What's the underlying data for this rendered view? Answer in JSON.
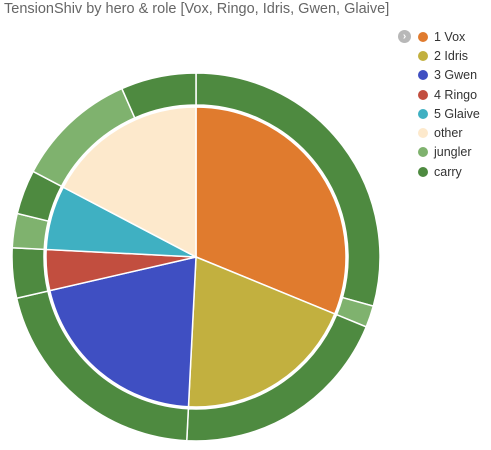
{
  "chart_data": {
    "type": "pie",
    "title": "TensionShiv by hero & role [Vox, Ringo, Idris, Gwen, Glaive]",
    "inner": [
      {
        "label": "1 Vox",
        "value": 31.2,
        "color": "#e07b2e"
      },
      {
        "label": "2 Idris",
        "value": 19.6,
        "color": "#c2b03f"
      },
      {
        "label": "3 Gwen",
        "value": 20.6,
        "color": "#3f4fc2"
      },
      {
        "label": "4 Ringo",
        "value": 4.4,
        "color": "#c24e3f"
      },
      {
        "label": "5 Glaive",
        "value": 6.9,
        "color": "#3fb0c2"
      },
      {
        "label": "other",
        "value": 17.3,
        "color": "#fde9cc"
      }
    ],
    "outer": [
      {
        "parent": "1 Vox",
        "role": "carry",
        "value": 29.3
      },
      {
        "parent": "1 Vox",
        "role": "jungler",
        "value": 1.9
      },
      {
        "parent": "2 Idris",
        "role": "carry",
        "value": 19.6
      },
      {
        "parent": "3 Gwen",
        "role": "carry",
        "value": 20.6
      },
      {
        "parent": "4 Ringo",
        "role": "carry",
        "value": 4.4
      },
      {
        "parent": "5 Glaive",
        "role": "jungler",
        "value": 3.0
      },
      {
        "parent": "5 Glaive",
        "role": "carry",
        "value": 3.9
      },
      {
        "parent": "other",
        "role": "jungler",
        "value": 10.7
      },
      {
        "parent": "other",
        "role": "carry",
        "value": 6.6
      }
    ],
    "legend": [
      {
        "label": "1 Vox",
        "color": "#e07b2e"
      },
      {
        "label": "2 Idris",
        "color": "#c2b03f"
      },
      {
        "label": "3 Gwen",
        "color": "#3f4fc2"
      },
      {
        "label": "4 Ringo",
        "color": "#c24e3f"
      },
      {
        "label": "5 Glaive",
        "color": "#3fb0c2"
      },
      {
        "label": "other",
        "color": "#fde9cc"
      },
      {
        "label": "jungler",
        "color": "#7fb26e"
      },
      {
        "label": "carry",
        "color": "#4e8a40"
      }
    ],
    "role_colors": {
      "carry": "#4e8a40",
      "jungler": "#7fb26e"
    },
    "legend_placement": "top-right"
  },
  "legend_toggle_icon": "chevron-right-icon"
}
